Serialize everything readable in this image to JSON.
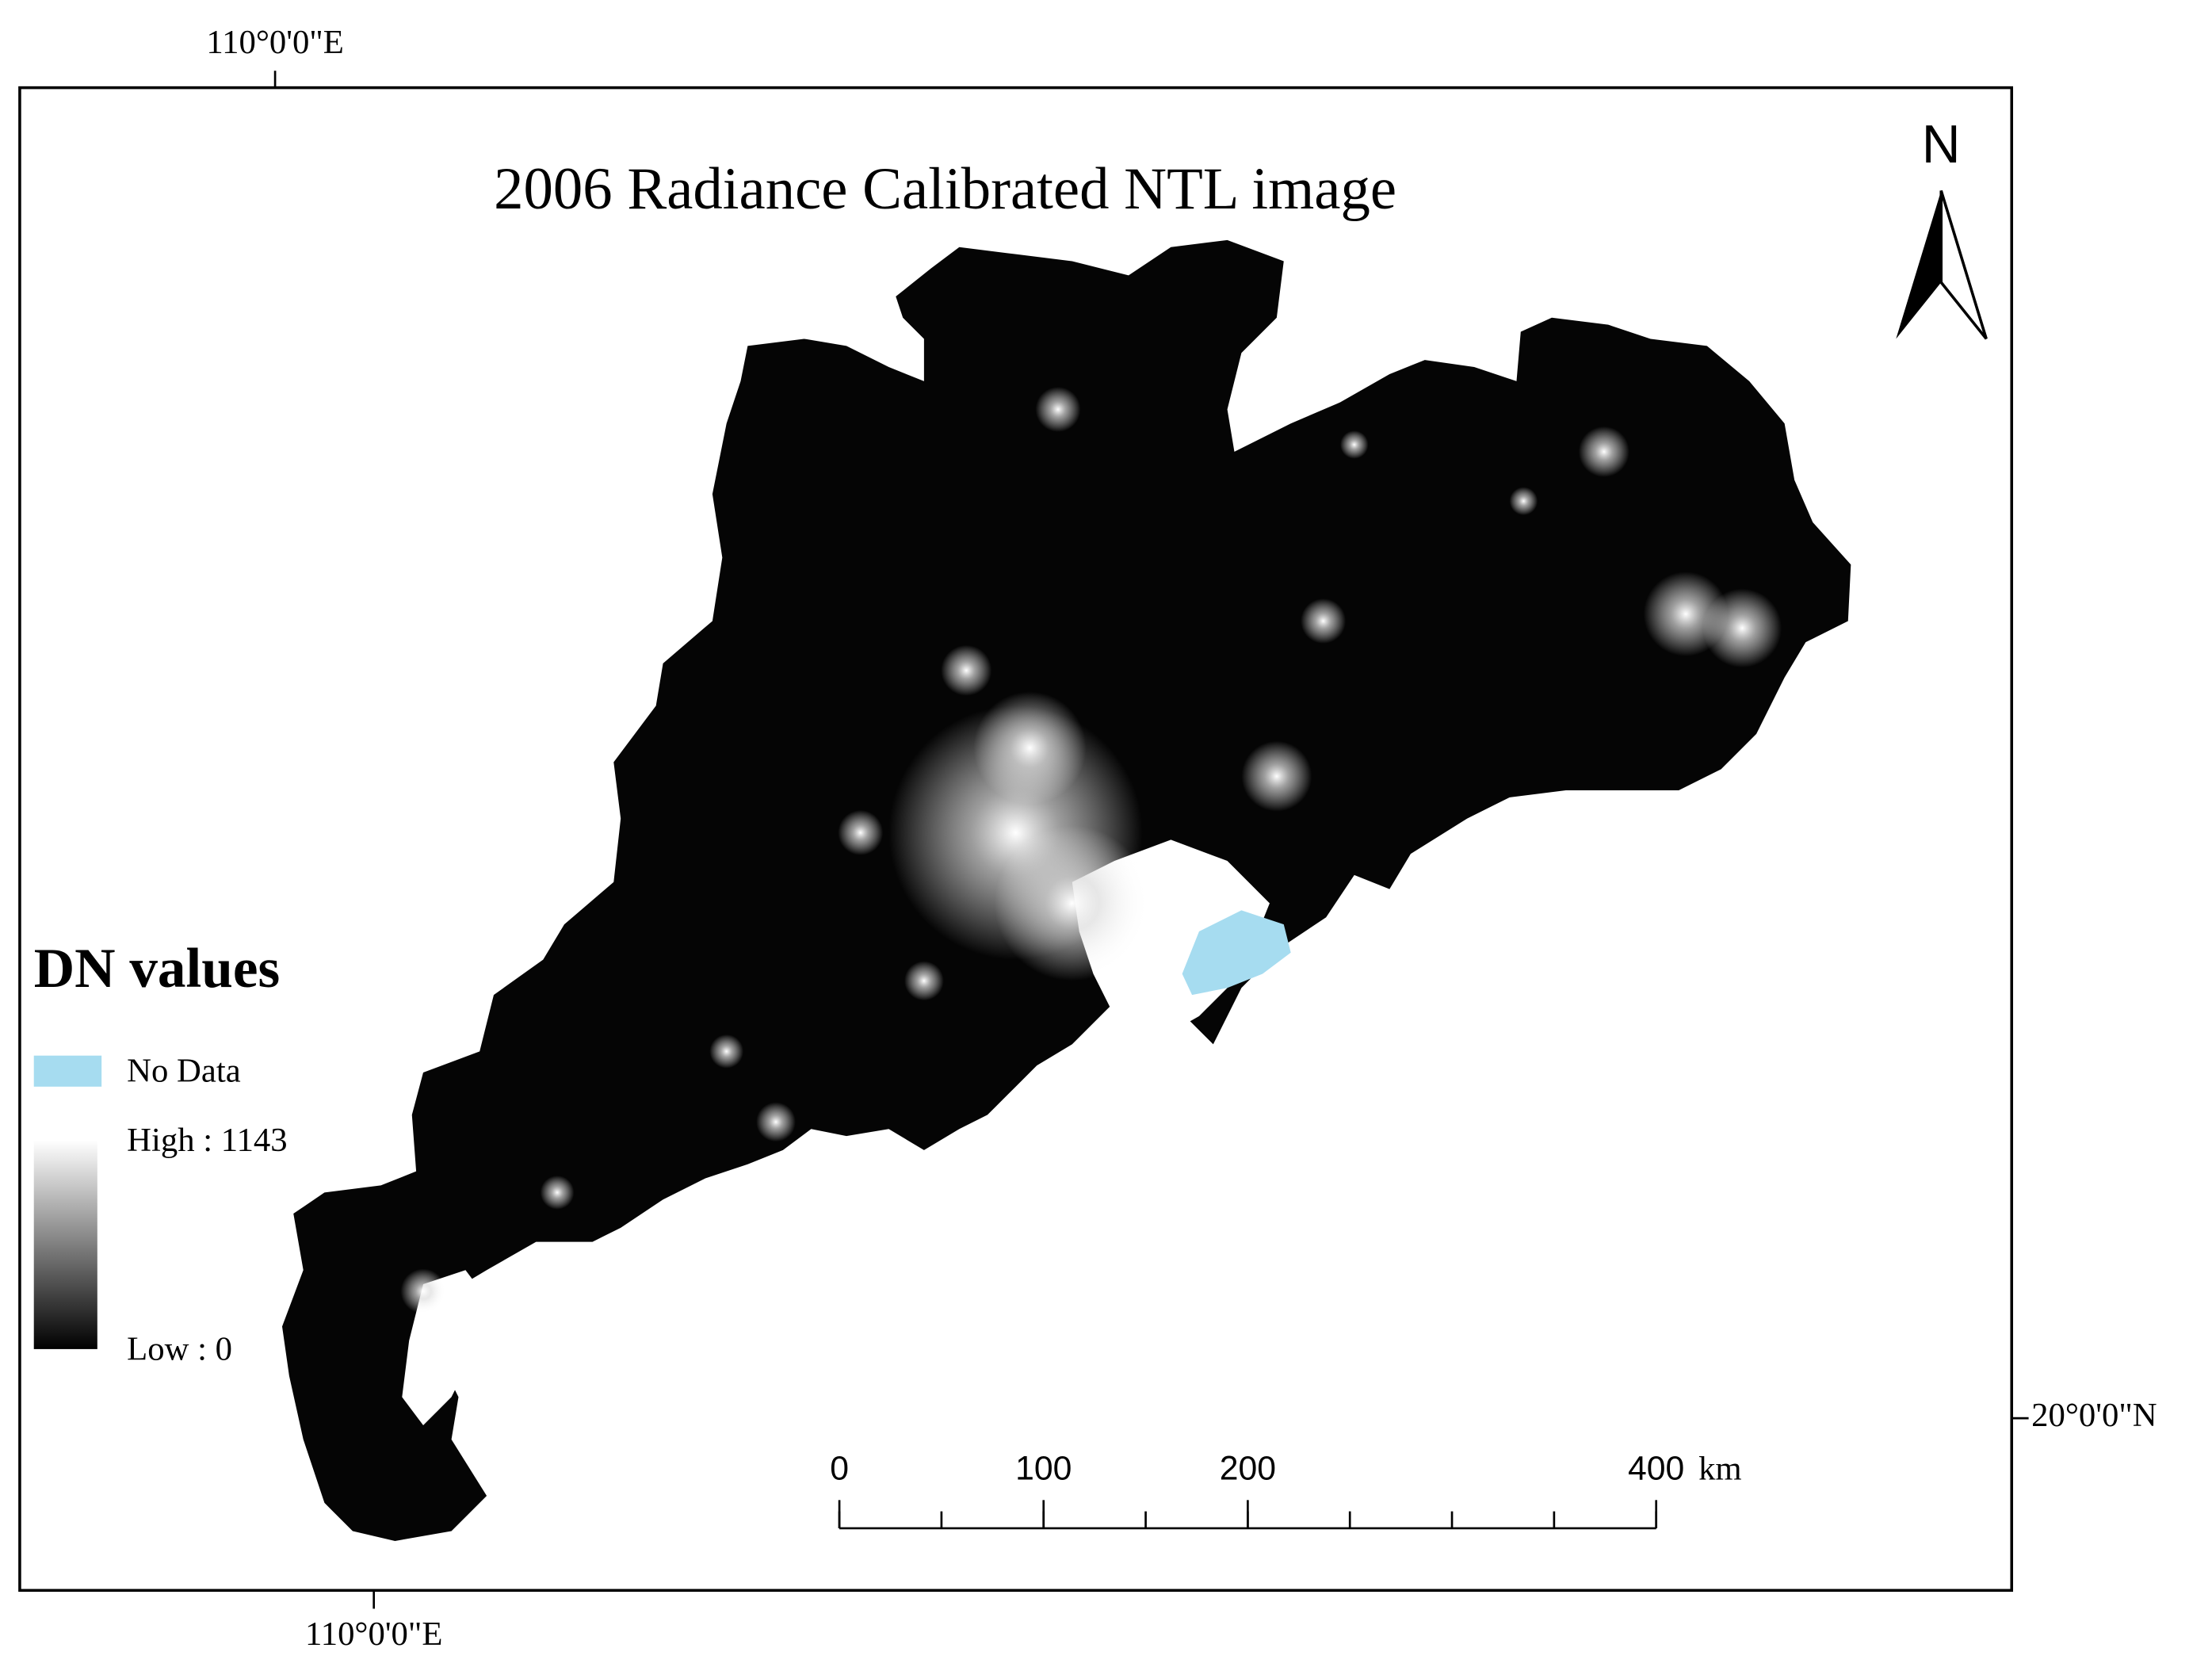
{
  "map": {
    "title": "2006 Radiance Calibrated NTL image",
    "graticule": {
      "top": "110°0'0\"E",
      "bottom": "110°0'0\"E",
      "right": "20°0'0\"N"
    },
    "north": "N",
    "legend": {
      "title": "DN values",
      "no_data": "No Data",
      "high": "High : 1143",
      "low": "Low : 0"
    },
    "scale_bar": {
      "labels": [
        0,
        100,
        200,
        400
      ],
      "unit": "km"
    }
  }
}
